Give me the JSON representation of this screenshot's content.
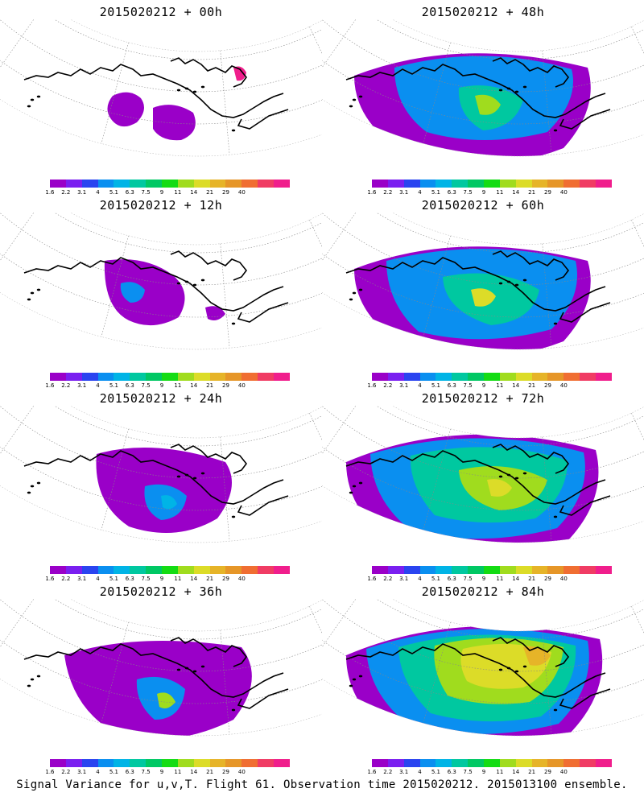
{
  "panels": [
    {
      "title": "2015020212 + 00h"
    },
    {
      "title": "2015020212 + 48h"
    },
    {
      "title": "2015020212 + 12h"
    },
    {
      "title": "2015020212 + 60h"
    },
    {
      "title": "2015020212 + 24h"
    },
    {
      "title": "2015020212 + 72h"
    },
    {
      "title": "2015020212 + 36h"
    },
    {
      "title": "2015020212 + 84h"
    }
  ],
  "colorbar": {
    "labels": [
      "1.6",
      "2.2",
      "3.1",
      "4",
      "5.1",
      "6.3",
      "7.5",
      "9",
      "11",
      "14",
      "21",
      "29",
      "40"
    ],
    "colors": [
      "#9a00c8",
      "#7a1ff0",
      "#2a44f0",
      "#0a8ff0",
      "#00b4e6",
      "#00c8a0",
      "#00c864",
      "#14dc14",
      "#a0dc1e",
      "#dcdc28",
      "#e6b428",
      "#e69628",
      "#f06e32",
      "#f03c64",
      "#f01e8c"
    ]
  },
  "footer": "Signal Variance for u,v,T. Flight 61. Observation time 2015020212. 2015013100 ensemble."
}
